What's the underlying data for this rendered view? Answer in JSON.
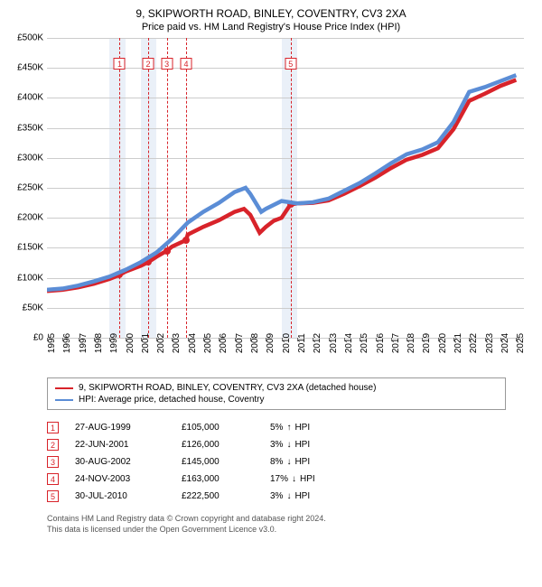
{
  "title": {
    "main": "9, SKIPWORTH ROAD, BINLEY, COVENTRY, CV3 2XA",
    "sub": "Price paid vs. HM Land Registry's House Price Index (HPI)"
  },
  "chart": {
    "type": "line",
    "xlim": [
      1995,
      2025.5
    ],
    "ylim": [
      0,
      500000
    ],
    "ytick_step": 50000,
    "yticks": [
      "£0",
      "£50K",
      "£100K",
      "£150K",
      "£200K",
      "£250K",
      "£300K",
      "£350K",
      "£400K",
      "£450K",
      "£500K"
    ],
    "xticks": [
      1995,
      1996,
      1997,
      1998,
      1999,
      2000,
      2001,
      2002,
      2003,
      2004,
      2005,
      2006,
      2007,
      2008,
      2009,
      2010,
      2011,
      2012,
      2013,
      2014,
      2015,
      2016,
      2017,
      2018,
      2019,
      2020,
      2021,
      2022,
      2023,
      2024,
      2025
    ],
    "background_color": "#ffffff",
    "grid_color": "#cccccc",
    "band_color": "#eaf0f8",
    "band_ranges": [
      [
        1999,
        2000
      ],
      [
        2001,
        2002
      ],
      [
        2010,
        2011
      ]
    ],
    "series": [
      {
        "name": "property",
        "label": "9, SKIPWORTH ROAD, BINLEY, COVENTRY, CV3 2XA (detached house)",
        "color": "#d8232a",
        "line_width": 1.5,
        "points": [
          [
            1995,
            78000
          ],
          [
            1996,
            80000
          ],
          [
            1997,
            84000
          ],
          [
            1998,
            90000
          ],
          [
            1999,
            98000
          ],
          [
            1999.65,
            105000
          ],
          [
            2000,
            110000
          ],
          [
            2001,
            120000
          ],
          [
            2001.47,
            126000
          ],
          [
            2002,
            135000
          ],
          [
            2002.66,
            145000
          ],
          [
            2003,
            152000
          ],
          [
            2003.9,
            163000
          ],
          [
            2004,
            172000
          ],
          [
            2005,
            185000
          ],
          [
            2006,
            196000
          ],
          [
            2007,
            210000
          ],
          [
            2007.6,
            215000
          ],
          [
            2008,
            205000
          ],
          [
            2008.6,
            175000
          ],
          [
            2009,
            185000
          ],
          [
            2009.5,
            195000
          ],
          [
            2010,
            200000
          ],
          [
            2010.58,
            222500
          ],
          [
            2011,
            224000
          ],
          [
            2012,
            225000
          ],
          [
            2013,
            229000
          ],
          [
            2014,
            240000
          ],
          [
            2015,
            253000
          ],
          [
            2016,
            267000
          ],
          [
            2017,
            283000
          ],
          [
            2018,
            297000
          ],
          [
            2019,
            305000
          ],
          [
            2020,
            316000
          ],
          [
            2021,
            348000
          ],
          [
            2022,
            395000
          ],
          [
            2023,
            407000
          ],
          [
            2024,
            420000
          ],
          [
            2025,
            430000
          ]
        ]
      },
      {
        "name": "hpi",
        "label": "HPI: Average price, detached house, Coventry",
        "color": "#5b8dd6",
        "line_width": 1.5,
        "points": [
          [
            1995,
            80000
          ],
          [
            1996,
            82000
          ],
          [
            1997,
            87000
          ],
          [
            1998,
            94000
          ],
          [
            1999,
            102000
          ],
          [
            2000,
            113000
          ],
          [
            2001,
            126000
          ],
          [
            2002,
            142000
          ],
          [
            2003,
            165000
          ],
          [
            2004,
            192000
          ],
          [
            2005,
            210000
          ],
          [
            2006,
            225000
          ],
          [
            2007,
            243000
          ],
          [
            2007.7,
            250000
          ],
          [
            2008,
            240000
          ],
          [
            2008.7,
            210000
          ],
          [
            2009,
            215000
          ],
          [
            2010,
            228000
          ],
          [
            2011,
            224000
          ],
          [
            2012,
            226000
          ],
          [
            2013,
            232000
          ],
          [
            2014,
            245000
          ],
          [
            2015,
            258000
          ],
          [
            2016,
            274000
          ],
          [
            2017,
            291000
          ],
          [
            2018,
            306000
          ],
          [
            2019,
            314000
          ],
          [
            2020,
            326000
          ],
          [
            2021,
            360000
          ],
          [
            2022,
            410000
          ],
          [
            2023,
            418000
          ],
          [
            2024,
            428000
          ],
          [
            2025,
            438000
          ]
        ]
      }
    ],
    "markers": [
      {
        "n": "1",
        "x": 1999.65,
        "y": 105000,
        "top": 22
      },
      {
        "n": "2",
        "x": 2001.47,
        "y": 126000,
        "top": 22
      },
      {
        "n": "3",
        "x": 2002.66,
        "y": 145000,
        "top": 22
      },
      {
        "n": "4",
        "x": 2003.9,
        "y": 163000,
        "top": 22
      },
      {
        "n": "5",
        "x": 2010.58,
        "y": 222500,
        "top": 22
      }
    ]
  },
  "legend": {
    "items": [
      {
        "color": "#d8232a",
        "label": "9, SKIPWORTH ROAD, BINLEY, COVENTRY, CV3 2XA (detached house)"
      },
      {
        "color": "#5b8dd6",
        "label": "HPI: Average price, detached house, Coventry"
      }
    ]
  },
  "sales": [
    {
      "n": "1",
      "date": "27-AUG-1999",
      "price": "£105,000",
      "pct": "5%",
      "arrow": "↑",
      "tag": "HPI"
    },
    {
      "n": "2",
      "date": "22-JUN-2001",
      "price": "£126,000",
      "pct": "3%",
      "arrow": "↓",
      "tag": "HPI"
    },
    {
      "n": "3",
      "date": "30-AUG-2002",
      "price": "£145,000",
      "pct": "8%",
      "arrow": "↓",
      "tag": "HPI"
    },
    {
      "n": "4",
      "date": "24-NOV-2003",
      "price": "£163,000",
      "pct": "17%",
      "arrow": "↓",
      "tag": "HPI"
    },
    {
      "n": "5",
      "date": "30-JUL-2010",
      "price": "£222,500",
      "pct": "3%",
      "arrow": "↓",
      "tag": "HPI"
    }
  ],
  "footer": {
    "line1": "Contains HM Land Registry data © Crown copyright and database right 2024.",
    "line2": "This data is licensed under the Open Government Licence v3.0."
  }
}
